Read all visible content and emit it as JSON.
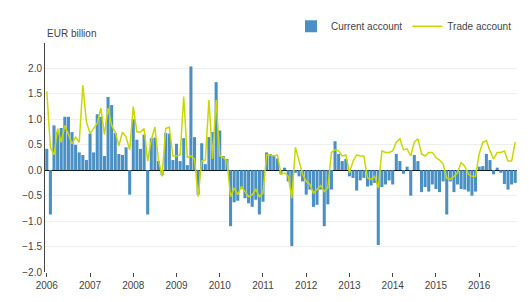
{
  "chart_data": {
    "type": "bar",
    "ylabel": "EUR billion",
    "categories": [
      "2006",
      null,
      null,
      null,
      null,
      null,
      null,
      null,
      null,
      null,
      null,
      null,
      "2007",
      null,
      null,
      null,
      null,
      null,
      null,
      null,
      null,
      null,
      null,
      null,
      "2008",
      null,
      null,
      null,
      null,
      null,
      null,
      null,
      null,
      null,
      null,
      null,
      "2009",
      null,
      null,
      null,
      null,
      null,
      null,
      null,
      null,
      null,
      null,
      null,
      "2010",
      null,
      null,
      null,
      null,
      null,
      null,
      null,
      null,
      null,
      null,
      null,
      "2011",
      null,
      null,
      null,
      null,
      null,
      null,
      null,
      null,
      null,
      null,
      null,
      "2012",
      null,
      null,
      null,
      null,
      null,
      null,
      null,
      null,
      null,
      null,
      null,
      "2013",
      null,
      null,
      null,
      null,
      null,
      null,
      null,
      null,
      null,
      null,
      null,
      "2014",
      null,
      null,
      null,
      null,
      null,
      null,
      null,
      null,
      null,
      null,
      null,
      "2015",
      null,
      null,
      null,
      null,
      null,
      null,
      null,
      null,
      null,
      null,
      null,
      "2016",
      null,
      null,
      null,
      null,
      null,
      null,
      null,
      null,
      null,
      null
    ],
    "series": [
      {
        "name": "Current account",
        "type": "bar",
        "color": "#4a90c4",
        "values": [
          0.42,
          -0.87,
          0.88,
          0.75,
          0.83,
          1.05,
          1.05,
          0.75,
          0.5,
          0.35,
          0.3,
          0.2,
          0.72,
          0.35,
          1.1,
          1.05,
          0.28,
          1.44,
          1.28,
          0.73,
          0.32,
          0.3,
          0.45,
          -0.48,
          1.0,
          0.6,
          0.42,
          0.7,
          -0.87,
          0.63,
          0.64,
          0.18,
          -0.1,
          0.73,
          0.72,
          0.2,
          0.52,
          0.18,
          0.63,
          0.1,
          2.04,
          0.65,
          -0.48,
          0.53,
          0.12,
          0.65,
          0.75,
          1.73,
          0.78,
          0.28,
          0.22,
          -1.1,
          -0.63,
          -0.6,
          -0.37,
          -0.55,
          -0.65,
          -0.72,
          -0.58,
          -0.87,
          -0.62,
          0.35,
          0.32,
          0.3,
          0.23,
          -0.08,
          0.05,
          -0.22,
          -1.49,
          -0.05,
          -0.12,
          -0.22,
          -0.48,
          -0.38,
          -0.72,
          -0.68,
          -0.38,
          -1.1,
          -0.67,
          -0.38,
          0.57,
          0.32,
          0.18,
          0.22,
          -0.12,
          -0.15,
          -0.4,
          -0.2,
          -0.15,
          -0.32,
          -0.3,
          -0.25,
          -1.47,
          -0.33,
          -0.28,
          -0.2,
          -0.28,
          0.32,
          0.18,
          -0.07,
          0.07,
          -0.5,
          0.3,
          0.18,
          -0.43,
          -0.33,
          -0.42,
          -0.28,
          -0.37,
          -0.43,
          -0.22,
          -0.87,
          -0.22,
          -0.43,
          -0.28,
          -0.37,
          -0.38,
          -0.42,
          -0.5,
          -0.42,
          0.07,
          0.08,
          0.32,
          0.2,
          -0.08,
          0.05,
          -0.05,
          -0.27,
          -0.38,
          -0.28,
          -0.25
        ]
      },
      {
        "name": "Trade account",
        "type": "line",
        "color": "#c8d900",
        "values": [
          1.55,
          0.45,
          0.3,
          0.82,
          0.55,
          0.88,
          0.7,
          0.52,
          0.65,
          0.55,
          1.67,
          0.95,
          0.72,
          0.82,
          0.92,
          1.22,
          0.7,
          1.22,
          0.88,
          0.75,
          0.48,
          0.75,
          0.65,
          0.4,
          1.25,
          0.75,
          0.75,
          0.82,
          0.18,
          0.6,
          0.85,
          0.2,
          -0.12,
          0.82,
          0.85,
          0.28,
          0.28,
          0.3,
          1.45,
          0.25,
          0.28,
          0.22,
          -0.52,
          0.18,
          0.2,
          1.38,
          0.22,
          1.38,
          0.28,
          0.25,
          0.18,
          -0.52,
          -0.35,
          -0.48,
          -0.32,
          -0.42,
          -0.52,
          -0.48,
          -0.38,
          -0.52,
          -0.45,
          0.3,
          0.3,
          0.28,
          0.3,
          -0.08,
          -0.05,
          -0.12,
          -0.55,
          0.45,
          0.18,
          -0.08,
          -0.22,
          -0.28,
          -0.45,
          -0.38,
          -0.3,
          -0.42,
          -0.35,
          0.35,
          0.4,
          0.38,
          0.28,
          0.3,
          -0.05,
          0.18,
          0.3,
          0.28,
          0.28,
          -0.15,
          -0.18,
          -0.12,
          -0.35,
          0.38,
          0.35,
          0.35,
          0.38,
          0.55,
          0.62,
          0.4,
          0.42,
          0.28,
          0.55,
          0.62,
          0.32,
          0.28,
          0.35,
          0.35,
          0.25,
          0.2,
          0.12,
          -0.15,
          -0.18,
          -0.12,
          -0.05,
          0.15,
          0.08,
          -0.08,
          -0.12,
          -0.12,
          0.32,
          0.55,
          0.58,
          0.38,
          0.22,
          0.35,
          0.35,
          0.38,
          0.18,
          0.18,
          0.55
        ]
      }
    ],
    "ylim": [
      -2.0,
      2.5
    ],
    "yticks": [
      {
        "value": -2.0,
        "label": "−2.0"
      },
      {
        "value": -1.5,
        "label": "−1.5"
      },
      {
        "value": -1.0,
        "label": "−1.0"
      },
      {
        "value": -0.5,
        "label": "−0.5"
      },
      {
        "value": 0.0,
        "label": "0.0"
      },
      0.5,
      {
        "value": 1.0,
        "label": "1.0"
      },
      1.5,
      {
        "value": 2.0,
        "label": "2.0"
      }
    ],
    "grid": true,
    "legend": "upper right"
  }
}
